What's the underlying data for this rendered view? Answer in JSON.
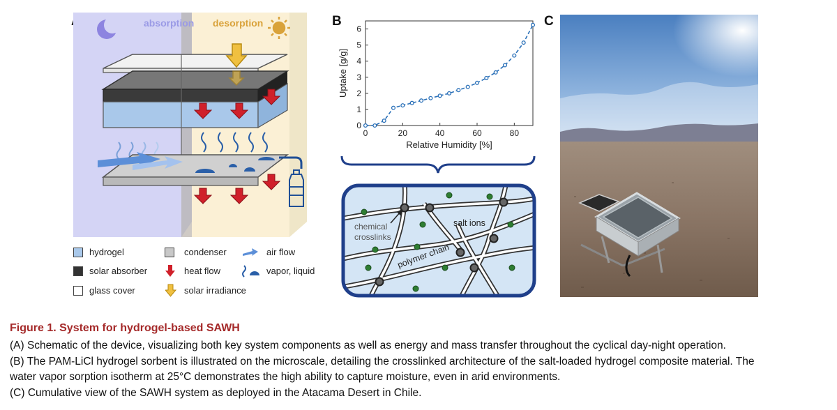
{
  "panels": {
    "a": {
      "letter": "A",
      "absorption_label": "absorption",
      "desorption_label": "desorption",
      "legend": {
        "hydrogel": "hydrogel",
        "condenser": "condenser",
        "air_flow": "air flow",
        "solar_absorber": "solar absorber",
        "heat_flow": "heat flow",
        "vapor_liquid": "vapor, liquid",
        "glass_cover": "glass cover",
        "solar_irradiance": "solar irradiance"
      },
      "colors": {
        "absorption_bg": "#d4d4f5",
        "desorption_bg": "#fbf0d5",
        "hydrogel": "#a9c8ea",
        "heat_arrow": "#d0202a",
        "solar_arrow": "#f0c040",
        "vapor": "#2a5fa8"
      }
    },
    "b": {
      "letter": "B",
      "labels": {
        "chemical_crosslinks_1": "chemical",
        "chemical_crosslinks_2": "crosslinks",
        "salt_ions": "salt ions",
        "polymer_chain": "polymer chain"
      }
    },
    "c": {
      "letter": "C",
      "photo_description": "SAWH device deployed in desert"
    }
  },
  "chart_data": {
    "type": "line",
    "xlabel": "Relative Humidity [%]",
    "ylabel": "Uptake [g/g]",
    "xlim": [
      0,
      90
    ],
    "ylim": [
      0,
      6.5
    ],
    "xticks": [
      0,
      20,
      40,
      60,
      80
    ],
    "yticks": [
      0,
      1,
      2,
      3,
      4,
      5,
      6
    ],
    "grid": false,
    "series": [
      {
        "color": "#2a70b8",
        "x": [
          0,
          5,
          10,
          15,
          20,
          25,
          30,
          35,
          40,
          45,
          50,
          55,
          60,
          65,
          70,
          75,
          80,
          85,
          90
        ],
        "y": [
          0,
          0,
          0.3,
          1.1,
          1.25,
          1.4,
          1.55,
          1.7,
          1.85,
          2.0,
          2.2,
          2.4,
          2.65,
          2.95,
          3.3,
          3.75,
          4.35,
          5.15,
          6.25
        ]
      }
    ]
  },
  "caption": {
    "title": "Figure 1. System for hydrogel-based SAWH",
    "line_a": "(A) Schematic of the device, visualizing both key system components as well as energy and mass transfer throughout the cyclical day-night operation.",
    "line_b1": "(B) The PAM-LiCl hydrogel sorbent is illustrated on the microscale, detailing the crosslinked architecture of the salt-loaded hydrogel composite material. The",
    "line_b2": "water vapor sorption isotherm at 25°C demonstrates the high ability to capture moisture, even in arid environments.",
    "line_c": "(C) Cumulative view of the SAWH system as deployed in the Atacama Desert in Chile."
  }
}
